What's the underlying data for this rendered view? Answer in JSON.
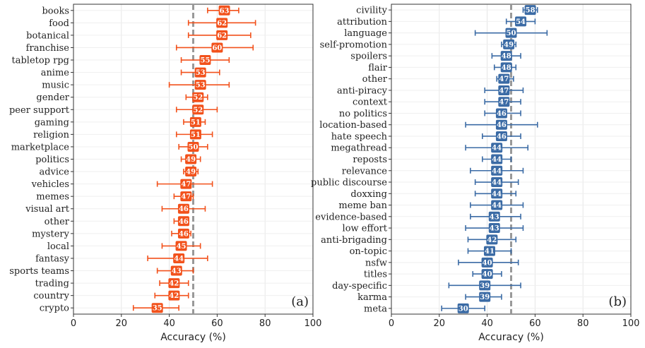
{
  "reference_line": 50,
  "chart_data": [
    {
      "type": "scatter",
      "panel_label": "(a)",
      "xlabel": "Accuracy (%)",
      "xlim": [
        0,
        100
      ],
      "xticks": [
        0,
        20,
        40,
        60,
        80,
        100
      ],
      "color": "#f2511b",
      "grid": true,
      "categories": [
        "books",
        "food",
        "botanical",
        "franchise",
        "tabletop rpg",
        "anime",
        "music",
        "gender",
        "peer support",
        "gaming",
        "religion",
        "marketplace",
        "politics",
        "advice",
        "vehicles",
        "memes",
        "visual art",
        "other",
        "mystery",
        "local",
        "fantasy",
        "sports teams",
        "trading",
        "country",
        "crypto"
      ],
      "values": [
        63,
        62,
        62,
        60,
        55,
        53,
        53,
        52,
        52,
        51,
        51,
        50,
        49,
        49,
        47,
        47,
        46,
        46,
        46,
        45,
        44,
        43,
        42,
        42,
        35
      ],
      "err_low": [
        56,
        48,
        48,
        43,
        45,
        45,
        40,
        47,
        43,
        46,
        43,
        44,
        45,
        46,
        35,
        42,
        37,
        42,
        41,
        37,
        31,
        35,
        36,
        34,
        25
      ],
      "err_high": [
        69,
        76,
        74,
        75,
        65,
        61,
        65,
        56,
        60,
        55,
        58,
        56,
        53,
        52,
        58,
        50,
        55,
        48,
        49,
        53,
        56,
        50,
        48,
        48,
        44
      ]
    },
    {
      "type": "scatter",
      "panel_label": "(b)",
      "xlabel": "Accuracy (%)",
      "xlim": [
        0,
        100
      ],
      "xticks": [
        0,
        20,
        40,
        60,
        80,
        100
      ],
      "color": "#3b6ba5",
      "grid": true,
      "categories": [
        "civility",
        "attribution",
        "language",
        "self-promotion",
        "spoilers",
        "flair",
        "other",
        "anti-piracy",
        "context",
        "no politics",
        "location-based",
        "hate speech",
        "megathread",
        "reposts",
        "relevance",
        "public discourse",
        "doxxing",
        "meme ban",
        "evidence-based",
        "low effort",
        "anti-brigading",
        "on-topic",
        "nsfw",
        "titles",
        "day-specific",
        "karma",
        "meta"
      ],
      "values": [
        58,
        54,
        50,
        49,
        48,
        48,
        47,
        47,
        47,
        46,
        46,
        46,
        44,
        44,
        44,
        44,
        44,
        44,
        43,
        43,
        42,
        41,
        40,
        40,
        39,
        39,
        30
      ],
      "err_low": [
        55,
        48,
        35,
        46,
        42,
        43,
        44,
        39,
        39,
        39,
        31,
        38,
        31,
        38,
        33,
        35,
        35,
        33,
        33,
        31,
        32,
        32,
        28,
        34,
        24,
        31,
        21
      ],
      "err_high": [
        61,
        60,
        65,
        52,
        54,
        52,
        51,
        55,
        54,
        54,
        61,
        54,
        57,
        50,
        55,
        53,
        52,
        55,
        54,
        55,
        52,
        50,
        53,
        46,
        54,
        46,
        39
      ]
    }
  ]
}
